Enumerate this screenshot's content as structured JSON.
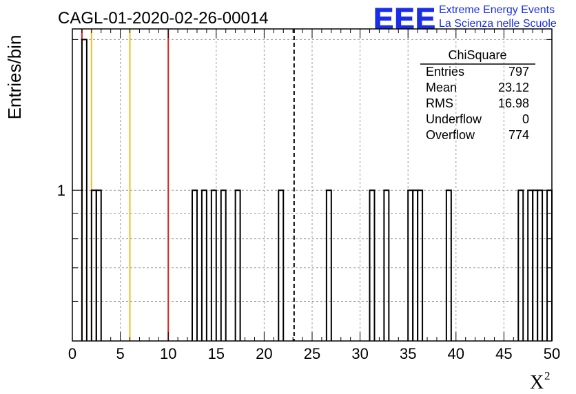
{
  "chart_data": {
    "type": "bar",
    "title": "CAGL-01-2020-02-26-00014",
    "xlabel": "X",
    "xlabel_superscript": "2",
    "ylabel": "Entries/bin",
    "xlim": [
      0,
      50
    ],
    "ylog": true,
    "ylim": [
      0.5,
      2.1
    ],
    "x_ticks": [
      "0",
      "5",
      "10",
      "15",
      "20",
      "25",
      "30",
      "35",
      "40",
      "45",
      "50"
    ],
    "y_ticks": [
      "1"
    ],
    "grid": true,
    "bin_width": 0.5,
    "bins": [
      {
        "x": 0.5,
        "y": 0
      },
      {
        "x": 1.0,
        "y": 2
      },
      {
        "x": 2.0,
        "y": 1
      },
      {
        "x": 2.5,
        "y": 1
      },
      {
        "x": 12.5,
        "y": 1
      },
      {
        "x": 13.5,
        "y": 1
      },
      {
        "x": 14.5,
        "y": 1
      },
      {
        "x": 15.5,
        "y": 1
      },
      {
        "x": 17.0,
        "y": 1
      },
      {
        "x": 21.5,
        "y": 1
      },
      {
        "x": 26.5,
        "y": 1
      },
      {
        "x": 31.0,
        "y": 1
      },
      {
        "x": 32.5,
        "y": 1
      },
      {
        "x": 35.0,
        "y": 1
      },
      {
        "x": 35.5,
        "y": 1
      },
      {
        "x": 36.0,
        "y": 1
      },
      {
        "x": 39.0,
        "y": 1
      },
      {
        "x": 46.5,
        "y": 1
      },
      {
        "x": 47.5,
        "y": 1
      },
      {
        "x": 48.0,
        "y": 1
      },
      {
        "x": 48.5,
        "y": 1
      },
      {
        "x": 49.5,
        "y": 1
      }
    ],
    "vlines": [
      {
        "x": 1,
        "color": "#dd2222",
        "style": "solid"
      },
      {
        "x": 2,
        "color": "#f0c020",
        "style": "solid"
      },
      {
        "x": 6,
        "color": "#f0c020",
        "style": "solid"
      },
      {
        "x": 10,
        "color": "#dd2222",
        "style": "solid"
      },
      {
        "x": 23.12,
        "color": "#000000",
        "style": "dashed"
      }
    ],
    "stats": {
      "title": "ChiSquare",
      "rows": [
        {
          "label": "Entries",
          "value": "797"
        },
        {
          "label": "Mean",
          "value": "23.12"
        },
        {
          "label": "RMS",
          "value": "16.98"
        },
        {
          "label": "Underflow",
          "value": "0"
        },
        {
          "label": "Overflow",
          "value": "774"
        }
      ]
    }
  },
  "logo": {
    "text": "EEE",
    "line1": "Extreme Energy Events",
    "line2": "La Scienza nelle Scuole",
    "color": "#1a2ee8"
  }
}
